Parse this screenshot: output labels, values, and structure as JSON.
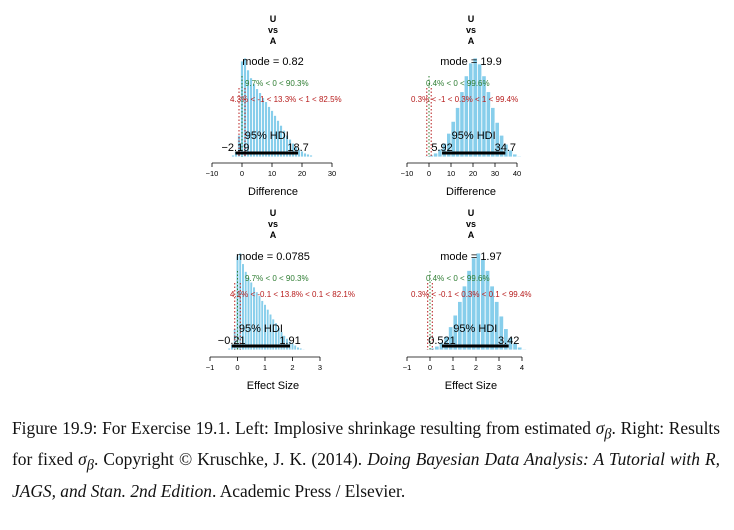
{
  "figure": {
    "panels": [
      {
        "id": "top-left",
        "title": [
          "U",
          "vs",
          "A"
        ],
        "mode_label": "mode = 0.82",
        "pct_zero_label": "9.7% < 0 < 90.3%",
        "rope_label": "4.3% < -1 < 13.3% < 1 < 82.5%",
        "hdi_label": "95% HDI",
        "hdi_low_label": "−2.19",
        "hdi_high_label": "18.7",
        "xlabel": "Difference",
        "ticks": [
          "−10",
          "0",
          "10",
          "20",
          "30"
        ]
      },
      {
        "id": "top-right",
        "title": [
          "U",
          "vs",
          "A"
        ],
        "mode_label": "mode = 19.9",
        "pct_zero_label": "0.4% < 0 < 99.6%",
        "rope_label": "0.3% < -1 < 0.3% < 1 < 99.4%",
        "hdi_label": "95% HDI",
        "hdi_low_label": "5.92",
        "hdi_high_label": "34.7",
        "xlabel": "Difference",
        "ticks": [
          "−10",
          "0",
          "10",
          "20",
          "30",
          "40"
        ]
      },
      {
        "id": "bottom-left",
        "title": [
          "U",
          "vs",
          "A"
        ],
        "mode_label": "mode = 0.0785",
        "pct_zero_label": "9.7% < 0 < 90.3%",
        "rope_label": "4.1% < -0.1 < 13.8% < 0.1 < 82.1%",
        "hdi_label": "95% HDI",
        "hdi_low_label": "−0.21",
        "hdi_high_label": "1.91",
        "xlabel": "Effect Size",
        "ticks": [
          "−1",
          "0",
          "1",
          "2",
          "3"
        ]
      },
      {
        "id": "bottom-right",
        "title": [
          "U",
          "vs",
          "A"
        ],
        "mode_label": "mode = 1.97",
        "pct_zero_label": "0.4% < 0 < 99.6%",
        "rope_label": "0.3% < -0.1 < 0.3% < 0.1 < 99.4%",
        "hdi_label": "95% HDI",
        "hdi_low_label": "0.521",
        "hdi_high_label": "3.42",
        "xlabel": "Effect Size",
        "ticks": [
          "−1",
          "0",
          "1",
          "2",
          "3",
          "4"
        ]
      }
    ],
    "colors": {
      "bars": "#87CEEB",
      "bar_edge": "#ffffff",
      "pct_zero_text": "#2e7d32",
      "rope_text": "#b71c1c",
      "hdi_line": "#000000"
    }
  },
  "chart_data": [
    {
      "type": "bar",
      "title": "U vs A",
      "xlabel": "Difference",
      "xlim": [
        -10,
        30
      ],
      "mode": 0.82,
      "hdi": [
        -2.19,
        18.7
      ],
      "comparison_value": 0,
      "pct_below_zero": 9.7,
      "pct_above_zero": 90.3,
      "rope": [
        -1,
        1
      ],
      "rope_pct": [
        4.3,
        13.3,
        82.5
      ],
      "x": [
        -3,
        -2,
        -1,
        0,
        1,
        2,
        3,
        4,
        5,
        6,
        7,
        8,
        9,
        10,
        11,
        12,
        13,
        14,
        15,
        16,
        17,
        18,
        19,
        20,
        21,
        22,
        23
      ],
      "values": [
        2,
        6,
        22,
        97,
        100,
        88,
        80,
        74,
        69,
        65,
        60,
        56,
        51,
        47,
        42,
        37,
        32,
        27,
        22,
        18,
        14,
        11,
        8,
        6,
        4,
        3,
        2
      ]
    },
    {
      "type": "bar",
      "title": "U vs A",
      "xlabel": "Difference",
      "xlim": [
        -10,
        40
      ],
      "mode": 19.9,
      "hdi": [
        5.92,
        34.7
      ],
      "comparison_value": 0,
      "pct_below_zero": 0.4,
      "pct_above_zero": 99.6,
      "rope": [
        -1,
        1
      ],
      "rope_pct": [
        0.3,
        0.3,
        99.4
      ],
      "x": [
        -1,
        1,
        3,
        5,
        7,
        9,
        11,
        13,
        15,
        17,
        19,
        21,
        23,
        25,
        27,
        29,
        31,
        33,
        35,
        37,
        39,
        41
      ],
      "values": [
        1,
        2,
        4,
        8,
        14,
        24,
        36,
        50,
        66,
        82,
        95,
        100,
        94,
        82,
        66,
        50,
        35,
        22,
        13,
        7,
        3,
        1
      ]
    },
    {
      "type": "bar",
      "title": "U vs A",
      "xlabel": "Effect Size",
      "xlim": [
        -1,
        3
      ],
      "mode": 0.0785,
      "hdi": [
        -0.21,
        1.91
      ],
      "comparison_value": 0,
      "pct_below_zero": 9.7,
      "pct_above_zero": 90.3,
      "rope": [
        -0.1,
        0.1
      ],
      "rope_pct": [
        4.1,
        13.8,
        82.1
      ],
      "x": [
        -0.3,
        -0.2,
        -0.1,
        0,
        0.1,
        0.2,
        0.3,
        0.4,
        0.5,
        0.6,
        0.7,
        0.8,
        0.9,
        1.0,
        1.1,
        1.2,
        1.3,
        1.4,
        1.5,
        1.6,
        1.7,
        1.8,
        1.9,
        2.0,
        2.1,
        2.2,
        2.3,
        2.4
      ],
      "values": [
        2,
        6,
        22,
        97,
        100,
        89,
        81,
        75,
        70,
        65,
        60,
        56,
        51,
        47,
        42,
        37,
        32,
        28,
        23,
        19,
        15,
        12,
        9,
        7,
        5,
        3,
        2,
        1
      ]
    },
    {
      "type": "bar",
      "title": "U vs A",
      "xlabel": "Effect Size",
      "xlim": [
        -1,
        4
      ],
      "mode": 1.97,
      "hdi": [
        0.521,
        3.42
      ],
      "comparison_value": 0,
      "pct_below_zero": 0.4,
      "pct_above_zero": 99.6,
      "rope": [
        -0.1,
        0.1
      ],
      "rope_pct": [
        0.3,
        0.3,
        99.4
      ],
      "x": [
        -0.1,
        0.1,
        0.3,
        0.5,
        0.7,
        0.9,
        1.1,
        1.3,
        1.5,
        1.7,
        1.9,
        2.1,
        2.3,
        2.5,
        2.7,
        2.9,
        3.1,
        3.3,
        3.5,
        3.7,
        3.9,
        4.1
      ],
      "values": [
        1,
        2,
        4,
        8,
        14,
        24,
        36,
        50,
        66,
        82,
        95,
        100,
        94,
        82,
        66,
        50,
        35,
        22,
        13,
        7,
        3,
        1
      ]
    }
  ],
  "caption": {
    "fig_label": "Figure 19.9:",
    "text_1": " For Exercise 19.1. Left: Implosive shrinkage resulting from estimated ",
    "sigma_1": "σ",
    "sigma_sub_1": "β",
    "text_2": ". Right: Results for fixed ",
    "sigma_2": "σ",
    "sigma_sub_2": "β",
    "text_3": ". Copyright © Kruschke, J. K. (2014). ",
    "book_title": "Doing Bayesian Data Analysis: A Tutorial with R, JAGS, and Stan. 2nd Edition",
    "text_4": ". Academic Press / Elsevier."
  }
}
